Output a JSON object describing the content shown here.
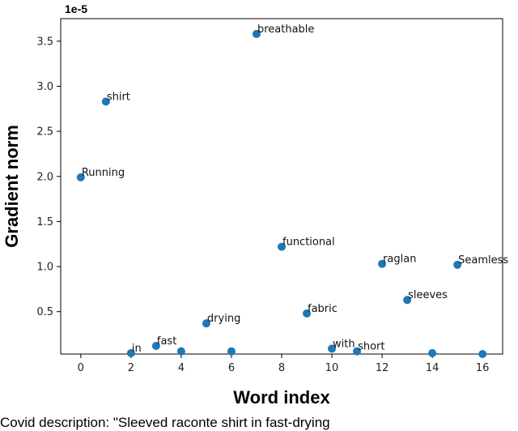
{
  "chart_data": {
    "type": "scatter",
    "title": "",
    "offset_label": "1e-5",
    "xlabel": "Word index",
    "ylabel": "Gradient norm",
    "xlim": [
      -0.8,
      16.8
    ],
    "ylim": [
      0.03,
      3.75
    ],
    "xticks": [
      0,
      2,
      4,
      6,
      8,
      10,
      12,
      14,
      16
    ],
    "yticks": [
      0.5,
      1.0,
      1.5,
      2.0,
      2.5,
      3.0,
      3.5
    ],
    "xtick_labels": [
      "0",
      "2",
      "4",
      "6",
      "8",
      "10",
      "12",
      "14",
      "16"
    ],
    "ytick_labels": [
      "0.5",
      "1.0",
      "1.5",
      "2.0",
      "2.5",
      "3.0",
      "3.5"
    ],
    "color": "#1f77b4",
    "points": [
      {
        "x": 0,
        "y": 1.99,
        "label": "Running"
      },
      {
        "x": 1,
        "y": 2.83,
        "label": "shirt"
      },
      {
        "x": 2,
        "y": 0.04,
        "label": "in"
      },
      {
        "x": 3,
        "y": 0.12,
        "label": "fast"
      },
      {
        "x": 4,
        "y": 0.06,
        "label": ""
      },
      {
        "x": 5,
        "y": 0.37,
        "label": "drying"
      },
      {
        "x": 6,
        "y": 0.06,
        "label": ""
      },
      {
        "x": 7,
        "y": 3.58,
        "label": "breathable"
      },
      {
        "x": 8,
        "y": 1.22,
        "label": "functional"
      },
      {
        "x": 9,
        "y": 0.48,
        "label": "fabric"
      },
      {
        "x": 10,
        "y": 0.09,
        "label": "with"
      },
      {
        "x": 11,
        "y": 0.06,
        "label": "short"
      },
      {
        "x": 12,
        "y": 1.03,
        "label": "raglan"
      },
      {
        "x": 13,
        "y": 0.63,
        "label": "sleeves"
      },
      {
        "x": 14,
        "y": 0.04,
        "label": ""
      },
      {
        "x": 15,
        "y": 1.02,
        "label": "Seamless"
      },
      {
        "x": 16,
        "y": 0.03,
        "label": ""
      }
    ]
  },
  "caption": "Covid description: \"Sleeved raconte shirt in fast-drying"
}
